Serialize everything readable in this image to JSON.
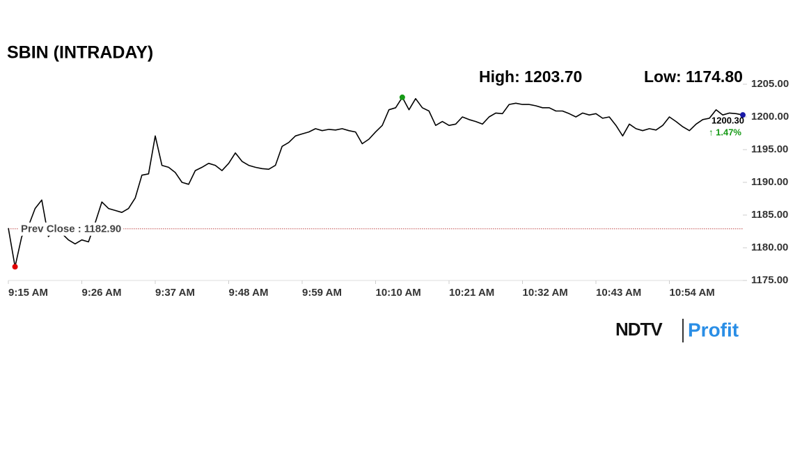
{
  "chart_data": {
    "type": "line",
    "title": "SBIN (INTRADAY)",
    "high_label": "High: 1203.70",
    "low_label": "Low: 1174.80",
    "last_label": "1200.30",
    "change_label": "↑ 1.47%",
    "prev_close": {
      "value": 1182.9,
      "label": "Prev Close : 1182.90"
    },
    "logo": [
      "NDTV",
      "Profit"
    ],
    "color": "#000000",
    "low_color": "#e00000",
    "high_color": "#169a16",
    "last_color": "#1a1aa8",
    "prev_close_color": "#c04848",
    "change_color": "#169a16",
    "x": [
      555,
      556,
      557,
      558,
      559,
      560,
      561,
      562,
      563,
      564,
      565,
      566,
      567,
      568,
      569,
      570,
      571,
      572,
      573,
      574,
      575,
      576,
      577,
      578,
      579,
      580,
      581,
      582,
      583,
      584,
      585,
      586,
      587,
      588,
      589,
      590,
      591,
      592,
      593,
      594,
      595,
      596,
      597,
      598,
      599,
      600,
      601,
      602,
      603,
      604,
      605,
      606,
      607,
      608,
      609,
      610,
      611,
      612,
      613,
      614,
      615,
      616,
      617,
      618,
      619,
      620,
      621,
      622,
      623,
      624,
      625,
      626,
      627,
      628,
      629,
      630,
      631,
      632,
      633,
      634,
      635,
      636,
      637,
      638,
      639,
      640,
      641,
      642,
      643,
      644,
      645,
      646,
      647,
      648,
      649,
      650,
      651,
      652,
      653,
      654,
      655,
      656,
      657,
      658,
      659,
      660,
      661,
      662,
      663,
      664,
      665
    ],
    "values": [
      1183.0,
      1177.1,
      1181.7,
      1183.3,
      1186.0,
      1187.3,
      1181.7,
      1182.8,
      1182.2,
      1181.2,
      1180.6,
      1181.2,
      1180.9,
      1183.8,
      1187.0,
      1186.0,
      1185.7,
      1185.4,
      1186.0,
      1187.6,
      1191.1,
      1191.3,
      1197.1,
      1192.6,
      1192.3,
      1191.5,
      1190.0,
      1189.7,
      1191.8,
      1192.3,
      1192.9,
      1192.6,
      1191.8,
      1192.9,
      1194.5,
      1193.2,
      1192.6,
      1192.3,
      1192.1,
      1192.0,
      1192.6,
      1195.5,
      1196.1,
      1197.1,
      1197.4,
      1197.7,
      1198.2,
      1197.9,
      1198.1,
      1198.0,
      1198.2,
      1197.9,
      1197.7,
      1195.9,
      1196.6,
      1197.7,
      1198.7,
      1201.1,
      1201.4,
      1203.0,
      1201.1,
      1202.8,
      1201.4,
      1200.9,
      1198.7,
      1199.3,
      1198.7,
      1198.9,
      1200.0,
      1199.6,
      1199.3,
      1198.9,
      1200.0,
      1200.6,
      1200.5,
      1201.9,
      1202.1,
      1201.9,
      1201.9,
      1201.7,
      1201.4,
      1201.4,
      1200.9,
      1200.9,
      1200.5,
      1200.0,
      1200.6,
      1200.3,
      1200.5,
      1199.8,
      1200.0,
      1198.7,
      1197.1,
      1198.9,
      1198.2,
      1197.9,
      1198.2,
      1198.0,
      1198.7,
      1200.0,
      1199.3,
      1198.5,
      1197.9,
      1198.9,
      1199.6,
      1199.8,
      1201.1,
      1200.3,
      1200.6,
      1200.5,
      1200.3
    ],
    "xlim": [
      555,
      665
    ],
    "ylim": [
      1175,
      1205
    ],
    "xticks": [
      {
        "value": 555,
        "label": "9:15 AM"
      },
      {
        "value": 566,
        "label": "9:26 AM"
      },
      {
        "value": 577,
        "label": "9:37 AM"
      },
      {
        "value": 588,
        "label": "9:48 AM"
      },
      {
        "value": 599,
        "label": "9:59 AM"
      },
      {
        "value": 610,
        "label": "10:10 AM"
      },
      {
        "value": 621,
        "label": "10:21 AM"
      },
      {
        "value": 632,
        "label": "10:32 AM"
      },
      {
        "value": 643,
        "label": "10:43 AM"
      },
      {
        "value": 654,
        "label": "10:54 AM"
      }
    ],
    "yticks": [
      {
        "value": 1175,
        "label": "1175.00"
      },
      {
        "value": 1180,
        "label": "1180.00"
      },
      {
        "value": 1185,
        "label": "1185.00"
      },
      {
        "value": 1190,
        "label": "1190.00"
      },
      {
        "value": 1195,
        "label": "1195.00"
      },
      {
        "value": 1200,
        "label": "1200.00"
      },
      {
        "value": 1205,
        "label": "1205.00"
      }
    ],
    "grid": false
  }
}
